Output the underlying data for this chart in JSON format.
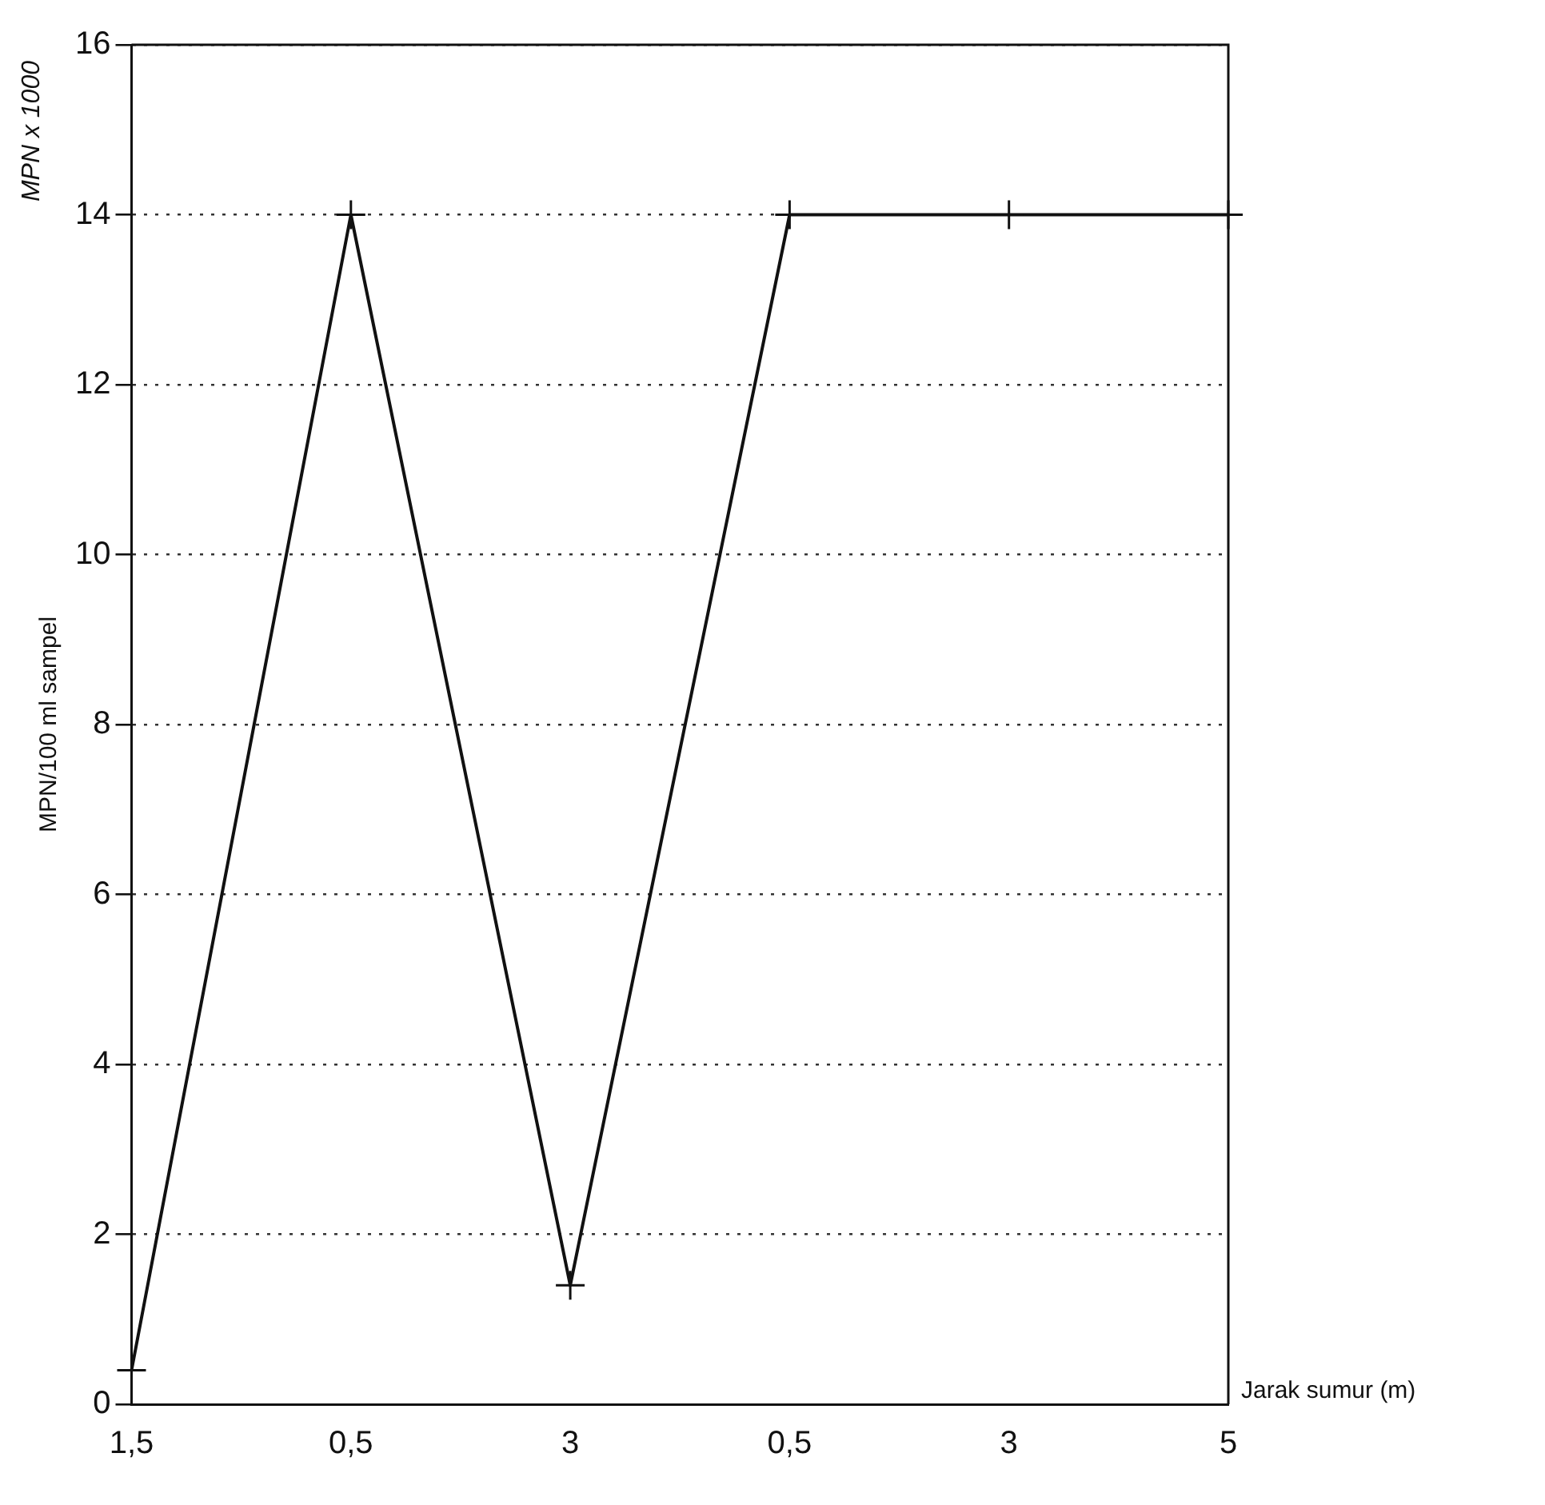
{
  "chart_data": {
    "type": "line",
    "ylabel": "MPN/100 ml sampel",
    "xlabel": "Jarak sumur (m)",
    "annotations": [
      "MPN x 1000"
    ],
    "categories": [
      "1,5",
      "0,5",
      "3",
      "0,5",
      "3",
      "5"
    ],
    "series": [
      {
        "color": "#111111",
        "values": [
          0.4,
          14,
          1.4,
          14,
          14,
          14
        ]
      }
    ],
    "ylim": [
      0,
      16
    ],
    "yticks": [
      0,
      2,
      4,
      6,
      8,
      10,
      12,
      14,
      16
    ],
    "grid": "y",
    "legend": false,
    "marker": "cross",
    "line_style": "solid"
  }
}
